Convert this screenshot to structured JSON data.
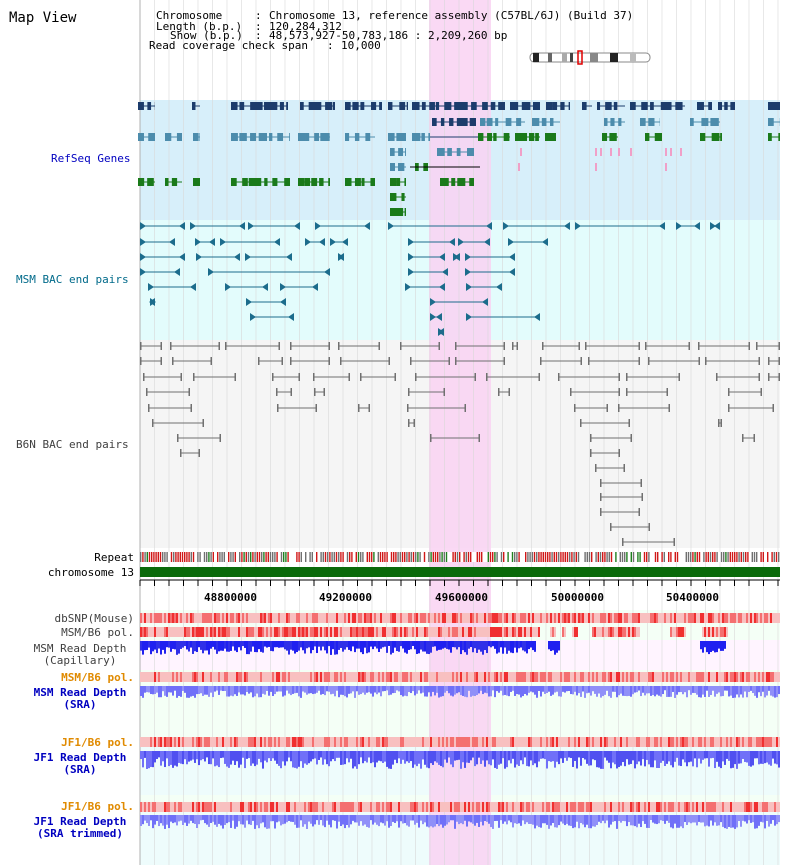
{
  "page": {
    "title": "Map View"
  },
  "info": {
    "chromosome_label": "Chromosome",
    "chromosome_value": "Chromosome 13, reference assembly (C57BL/6J) (Build 37)",
    "length_label": "Length (b.p.)",
    "length_value": "120,284,312",
    "show_label": "Show (b.p.)",
    "show_value": "48,573,927-50,783,186 : 2,209,260 bp",
    "coverage_label": "Read coverage check span",
    "coverage_value": "10,000"
  },
  "tracks": {
    "refseq": "RefSeq Genes",
    "msm_bac": "MSM BAC end pairs",
    "b6n_bac": "B6N BAC end pairs",
    "repeat": "Repeat",
    "chromosome": "chromosome 13",
    "dbsnp": "dbSNP(Mouse)",
    "msm_pol1": "MSM/B6 pol.",
    "msm_depth_cap_1": "MSM Read Depth",
    "msm_depth_cap_2": "(Capillary)",
    "msm_pol2": "MSM/B6 pol.",
    "msm_depth_sra_1": "MSM Read Depth",
    "msm_depth_sra_2": "(SRA)",
    "jf1_pol1": "JF1/B6 pol.",
    "jf1_depth_sra_1": "JF1 Read Depth",
    "jf1_depth_sra_2": "(SRA)",
    "jf1_pol2": "JF1/B6 pol.",
    "jf1_depth_trim_1": "JF1 Read Depth",
    "jf1_depth_trim_2": "(SRA trimmed)"
  },
  "axis": {
    "ticks": [
      "48800000",
      "49200000",
      "49600000",
      "50000000",
      "50400000"
    ]
  },
  "colors": {
    "refseq_bg": "#d7effa",
    "msm_bg": "#e3fcfc",
    "bac_bg": "#f5f5f5",
    "highlight": "#f9d2f2",
    "gene_dark": "#1c3c6c",
    "gene_mid": "#4c8cac",
    "gene_green": "#1a7a1a",
    "gene_pink": "#f0a0c8",
    "msm_bac": "#1c6c8c",
    "b6n_bac": "#707070",
    "chrom": "#0a6a0a",
    "depth_dark": "#2020f0",
    "depth_light": "#7070f8",
    "pol_red": "#f03030",
    "pol_pink": "#f8c0c0",
    "label_blue": "#0000c0",
    "label_teal": "#006a8a",
    "label_orange": "#e08a00",
    "label_gray": "#404040"
  }
}
